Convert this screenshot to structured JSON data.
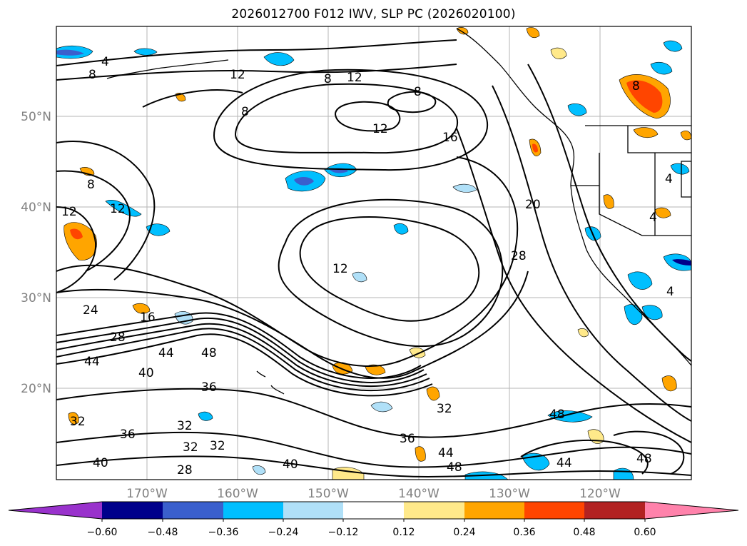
{
  "title": "2026012700 F012 IWV, SLP PC (2026020100)",
  "map": {
    "lat_labels": [
      "50°N",
      "40°N",
      "30°N",
      "20°N"
    ],
    "lon_labels": [
      "170°W",
      "160°W",
      "150°W",
      "140°W",
      "130°W",
      "120°W"
    ],
    "contour_labels": [
      "4",
      "8",
      "12",
      "8",
      "12",
      "8",
      "8",
      "12",
      "16",
      "8",
      "12",
      "12",
      "20",
      "28",
      "4",
      "12",
      "24",
      "16",
      "28",
      "44",
      "48",
      "44",
      "40",
      "36",
      "32",
      "32",
      "48",
      "36",
      "32",
      "36",
      "32",
      "32",
      "28",
      "40",
      "44",
      "48",
      "40",
      "48",
      "44",
      "4",
      "4",
      "8"
    ]
  },
  "colorbar": {
    "tick_labels": [
      "−0.60",
      "−0.48",
      "−0.36",
      "−0.24",
      "−0.12",
      "0.12",
      "0.24",
      "0.36",
      "0.48",
      "0.60"
    ],
    "colors": [
      "#9932cc",
      "#00008b",
      "#3a5fcd",
      "#00bfff",
      "#b0e0f8",
      "#ffffff",
      "#ffe98a",
      "#ffa500",
      "#ff4500",
      "#b22222",
      "#ff82ab"
    ]
  }
}
